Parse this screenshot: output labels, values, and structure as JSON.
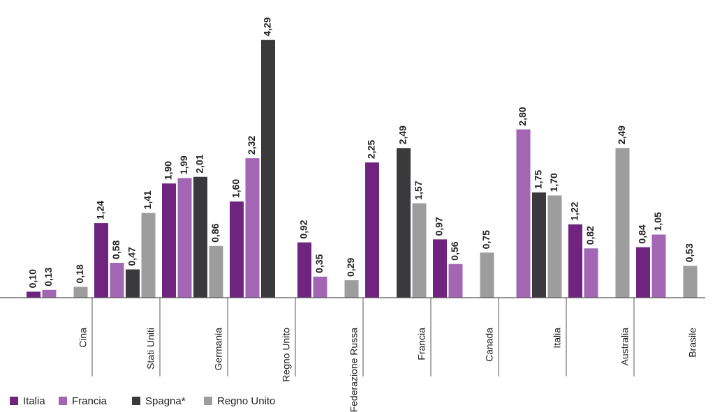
{
  "chart_data": {
    "type": "bar",
    "categories": [
      "Cina",
      "Stati Uniti",
      "Germania",
      "Regno Unito",
      "Federazione Russa",
      "Francia",
      "Canada",
      "Italia",
      "Australia",
      "Brasile"
    ],
    "series": [
      {
        "name": "Italia",
        "color": "#6f2480",
        "values": [
          0.1,
          1.24,
          1.9,
          1.6,
          0.92,
          2.25,
          0.97,
          null,
          1.22,
          0.84
        ],
        "value_labels": [
          "0,10",
          "1,24",
          "1,90",
          "1,60",
          "0,92",
          "2,25",
          "0,97",
          null,
          "1,22",
          "0,84"
        ]
      },
      {
        "name": "Francia",
        "color": "#a366b5",
        "values": [
          0.13,
          0.58,
          1.99,
          2.32,
          0.35,
          null,
          0.56,
          2.8,
          0.82,
          1.05
        ],
        "value_labels": [
          "0,13",
          "0,58",
          "1,99",
          "2,32",
          "0,35",
          null,
          "0,56",
          "2,80",
          "0,82",
          "1,05"
        ]
      },
      {
        "name": "Spagna*",
        "color": "#3a3a3c",
        "values": [
          null,
          0.47,
          2.01,
          4.29,
          null,
          2.49,
          null,
          1.75,
          null,
          null
        ],
        "value_labels": [
          null,
          "0,47",
          "2,01",
          "4,29",
          null,
          "2,49",
          null,
          "1,75",
          null,
          null
        ]
      },
      {
        "name": "Regno Unito",
        "color": "#9d9d9d",
        "values": [
          0.18,
          1.41,
          0.86,
          null,
          0.29,
          1.57,
          0.75,
          1.7,
          2.49,
          0.53
        ],
        "value_labels": [
          "0,18",
          "1,41",
          "0,86",
          null,
          "0,29",
          "1,57",
          "0,75",
          "1,70",
          "2,49",
          "0,53"
        ]
      }
    ],
    "ylim": [
      0,
      4.5
    ]
  }
}
